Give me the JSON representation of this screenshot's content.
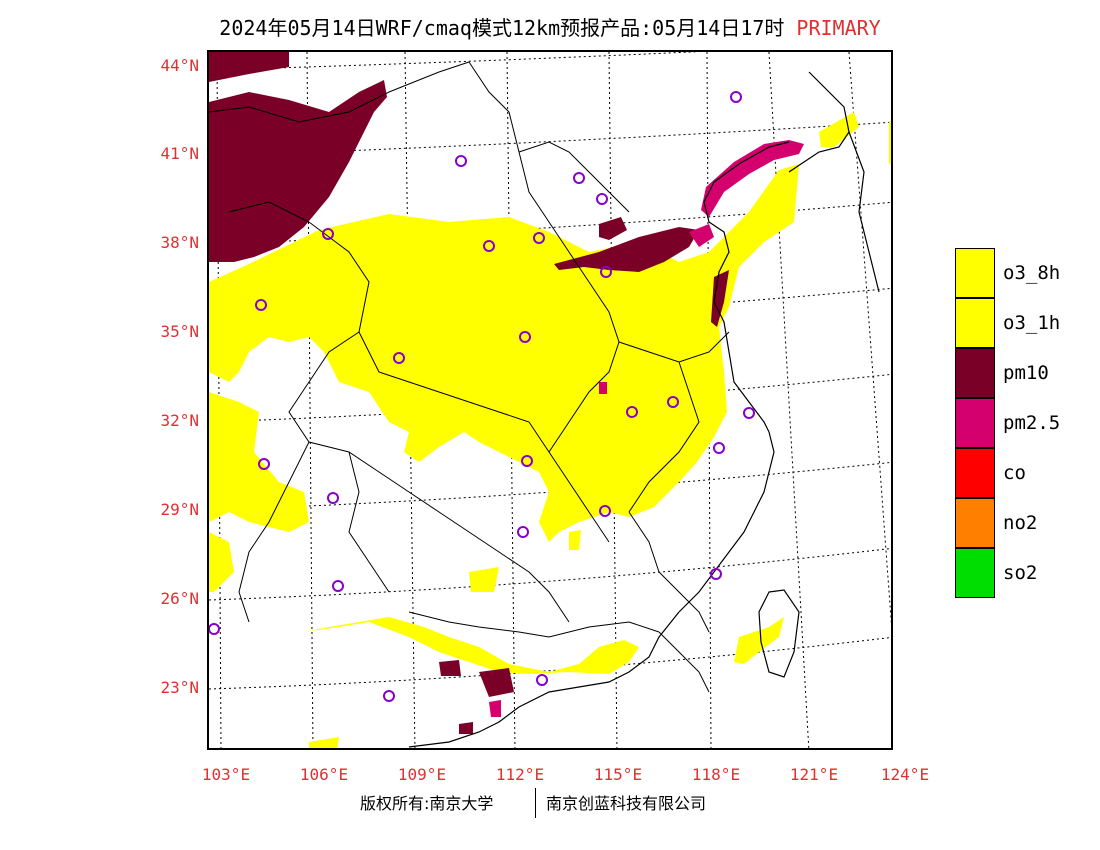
{
  "title": {
    "main": "2024年05月14日WRF/cmaq模式12km预报产品:05月14日17时",
    "tag": "PRIMARY"
  },
  "axes": {
    "lat_labels": [
      "44°N",
      "41°N",
      "38°N",
      "35°N",
      "32°N",
      "29°N",
      "26°N",
      "23°N"
    ],
    "lon_labels": [
      "103°E",
      "106°E",
      "109°E",
      "112°E",
      "115°E",
      "118°E",
      "121°E",
      "124°E"
    ]
  },
  "legend": [
    {
      "label": "o3_8h",
      "color": "#ffff00"
    },
    {
      "label": "o3_1h",
      "color": "#ffff00"
    },
    {
      "label": "pm10",
      "color": "#7a0028"
    },
    {
      "label": "pm2.5",
      "color": "#d4006e"
    },
    {
      "label": "co",
      "color": "#ff0000"
    },
    {
      "label": "no2",
      "color": "#ff7f00"
    },
    {
      "label": "so2",
      "color": "#00dd00"
    }
  ],
  "footer": {
    "left": "版权所有:南京大学",
    "right": "南京创蓝科技有限公司"
  },
  "colors": {
    "o3": "#ffff00",
    "pm10": "#7a0028",
    "pm25": "#d4006e",
    "city_marker": "#8800cc",
    "axis_text": "#e03030"
  }
}
